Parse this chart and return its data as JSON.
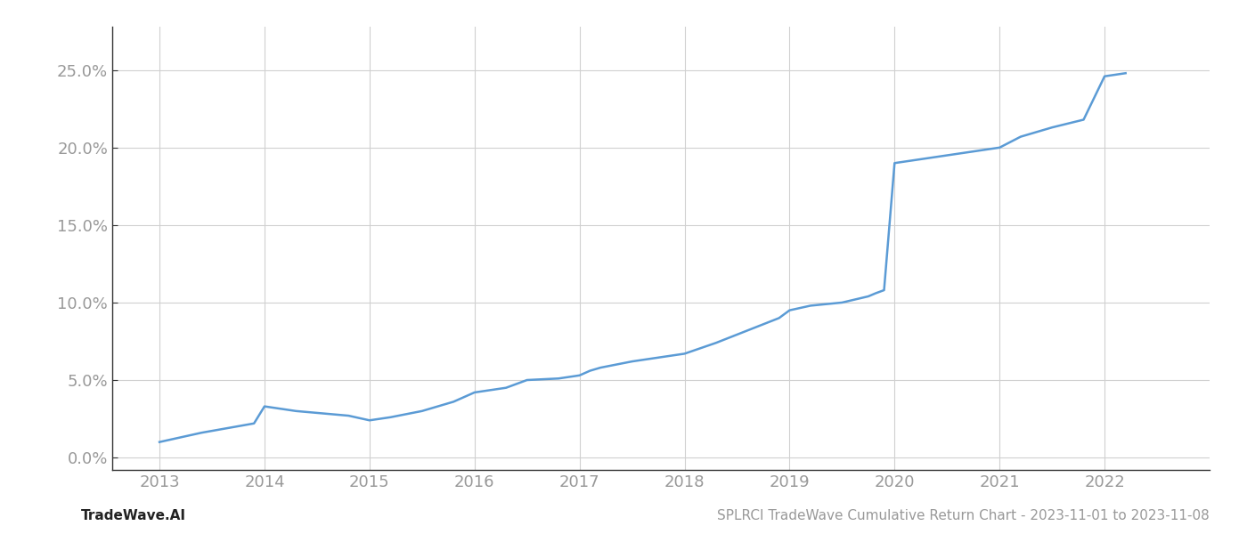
{
  "x_values": [
    2013.0,
    2013.4,
    2013.9,
    2014.0,
    2014.3,
    2014.8,
    2015.0,
    2015.2,
    2015.5,
    2015.8,
    2016.0,
    2016.3,
    2016.5,
    2016.8,
    2017.0,
    2017.1,
    2017.2,
    2017.5,
    2017.8,
    2018.0,
    2018.3,
    2018.6,
    2018.9,
    2019.0,
    2019.2,
    2019.5,
    2019.75,
    2019.82,
    2019.9,
    2020.0,
    2020.2,
    2020.5,
    2020.8,
    2021.0,
    2021.2,
    2021.5,
    2021.8,
    2022.0,
    2022.2
  ],
  "y_values": [
    0.01,
    0.016,
    0.022,
    0.033,
    0.03,
    0.027,
    0.024,
    0.026,
    0.03,
    0.036,
    0.042,
    0.045,
    0.05,
    0.051,
    0.053,
    0.056,
    0.058,
    0.062,
    0.065,
    0.067,
    0.074,
    0.082,
    0.09,
    0.095,
    0.098,
    0.1,
    0.104,
    0.106,
    0.108,
    0.19,
    0.192,
    0.195,
    0.198,
    0.2,
    0.207,
    0.213,
    0.218,
    0.246,
    0.248
  ],
  "line_color": "#5b9bd5",
  "line_width": 1.8,
  "footer_left": "TradeWave.AI",
  "footer_right": "SPLRCI TradeWave Cumulative Return Chart - 2023-11-01 to 2023-11-08",
  "xlim": [
    2012.55,
    2023.0
  ],
  "ylim": [
    -0.008,
    0.278
  ],
  "yticks": [
    0.0,
    0.05,
    0.1,
    0.15,
    0.2,
    0.25
  ],
  "xticks": [
    2013,
    2014,
    2015,
    2016,
    2017,
    2018,
    2019,
    2020,
    2021,
    2022
  ],
  "grid_color": "#d0d0d0",
  "background_color": "#ffffff",
  "tick_label_color": "#999999",
  "footer_right_color": "#999999",
  "footer_left_color": "#222222",
  "spine_color": "#333333"
}
